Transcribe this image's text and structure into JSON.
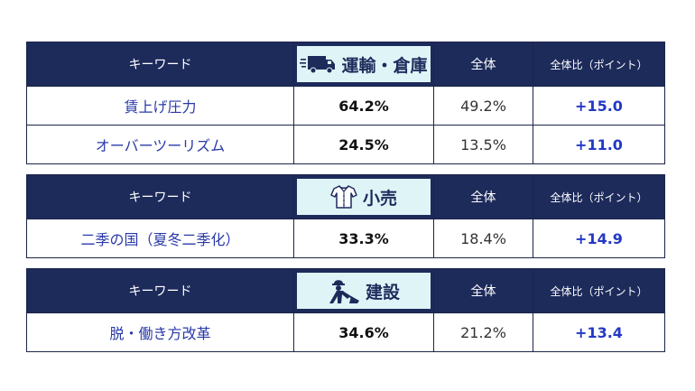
{
  "tables": [
    {
      "header": {
        "keyword": "キーワード",
        "industry": "運輸・倉庫",
        "industry_icon": "truck-icon",
        "overall": "全体",
        "diff": "全体比（ポイント）"
      },
      "rows": [
        {
          "keyword": "賃上げ圧力",
          "industry_value": "64.2%",
          "overall_value": "49.2%",
          "diff": "+15.0"
        },
        {
          "keyword": "オーバーツーリズム",
          "industry_value": "24.5%",
          "overall_value": "13.5%",
          "diff": "+11.0"
        }
      ]
    },
    {
      "header": {
        "keyword": "キーワード",
        "industry": "小売",
        "industry_icon": "shirt-icon",
        "overall": "全体",
        "diff": "全体比（ポイント）"
      },
      "rows": [
        {
          "keyword": "二季の国（夏冬二季化）",
          "industry_value": "33.3%",
          "overall_value": "18.4%",
          "diff": "+14.9"
        }
      ]
    },
    {
      "header": {
        "keyword": "キーワード",
        "industry": "建設",
        "industry_icon": "construction-worker-icon",
        "overall": "全体",
        "diff": "全体比（ポイント）"
      },
      "rows": [
        {
          "keyword": "脱・働き方改革",
          "industry_value": "34.6%",
          "overall_value": "21.2%",
          "diff": "+13.4"
        }
      ]
    }
  ],
  "colors": {
    "header_bg": "#1d2b5b",
    "industry_bg": "#dff4f7",
    "diff_text": "#2339c4",
    "keyword_text": "#2a3aa8"
  }
}
